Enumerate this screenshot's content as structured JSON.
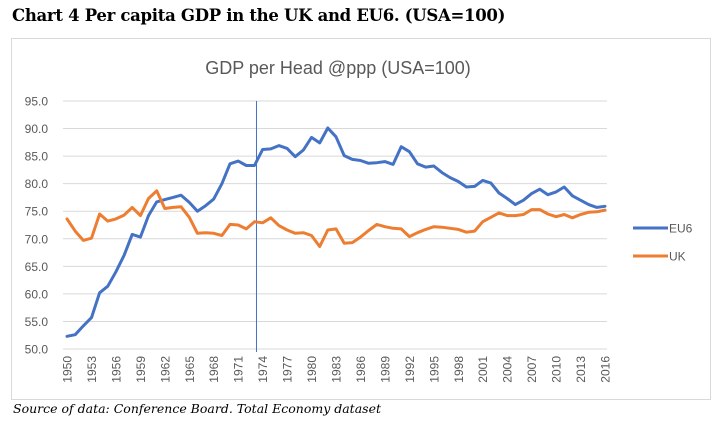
{
  "heading": "Chart 4 Per capita GDP in the UK and EU6. (USA=100)",
  "source": "Source of data: Conference Board. Total Economy dataset",
  "chart_data": {
    "type": "line",
    "title": "GDP per Head @ppp (USA=100)",
    "xlabel": "",
    "ylabel": "",
    "ylim": [
      50,
      95
    ],
    "y_ticks": [
      "50.0",
      "55.0",
      "60.0",
      "65.0",
      "70.0",
      "75.0",
      "80.0",
      "85.0",
      "90.0",
      "95.0"
    ],
    "y_tick_values": [
      50,
      55,
      60,
      65,
      70,
      75,
      80,
      85,
      90,
      95
    ],
    "x_tick_labels": [
      "1950",
      "1953",
      "1956",
      "1959",
      "1962",
      "1965",
      "1968",
      "1971",
      "1974",
      "1977",
      "1980",
      "1983",
      "1986",
      "1989",
      "1992",
      "1995",
      "1998",
      "2001",
      "2004",
      "2007",
      "2010",
      "2013",
      "2016"
    ],
    "grid": true,
    "legend_position": "right",
    "vertical_marker_year": 1973,
    "x": [
      1950,
      1951,
      1952,
      1953,
      1954,
      1955,
      1956,
      1957,
      1958,
      1959,
      1960,
      1961,
      1962,
      1963,
      1964,
      1965,
      1966,
      1967,
      1968,
      1969,
      1970,
      1971,
      1972,
      1973,
      1974,
      1975,
      1976,
      1977,
      1978,
      1979,
      1980,
      1981,
      1982,
      1983,
      1984,
      1985,
      1986,
      1987,
      1988,
      1989,
      1990,
      1991,
      1992,
      1993,
      1994,
      1995,
      1996,
      1997,
      1998,
      1999,
      2000,
      2001,
      2002,
      2003,
      2004,
      2005,
      2006,
      2007,
      2008,
      2009,
      2010,
      2011,
      2012,
      2013,
      2014,
      2015,
      2016
    ],
    "series": [
      {
        "name": "EU6",
        "color": "#4472c4",
        "values": [
          52.3,
          52.6,
          54.2,
          55.7,
          60.2,
          61.4,
          64.0,
          67.0,
          70.8,
          70.3,
          74.2,
          76.7,
          77.1,
          77.5,
          77.9,
          76.6,
          75.0,
          76.0,
          77.2,
          80.0,
          83.6,
          84.1,
          83.3,
          83.3,
          86.2,
          86.3,
          86.9,
          86.4,
          84.9,
          86.1,
          88.4,
          87.4,
          90.1,
          88.5,
          85.1,
          84.4,
          84.2,
          83.7,
          83.8,
          84.0,
          83.5,
          86.7,
          85.8,
          83.6,
          83.0,
          83.2,
          82.0,
          81.1,
          80.4,
          79.4,
          79.5,
          80.6,
          80.1,
          78.3,
          77.3,
          76.2,
          77.0,
          78.2,
          79.0,
          78.0,
          78.5,
          79.4,
          77.8,
          77.0,
          76.2,
          75.7,
          75.9
        ]
      },
      {
        "name": "UK",
        "color": "#ed7d31",
        "values": [
          73.6,
          71.4,
          69.7,
          70.1,
          74.5,
          73.2,
          73.6,
          74.3,
          75.7,
          74.2,
          77.3,
          78.7,
          75.5,
          75.7,
          75.8,
          73.9,
          71.0,
          71.1,
          71.0,
          70.6,
          72.6,
          72.5,
          71.8,
          73.1,
          72.9,
          73.8,
          72.4,
          71.6,
          71.0,
          71.1,
          70.6,
          68.6,
          71.6,
          71.8,
          69.2,
          69.3,
          70.3,
          71.5,
          72.6,
          72.2,
          71.9,
          71.8,
          70.4,
          71.1,
          71.7,
          72.2,
          72.1,
          71.9,
          71.7,
          71.2,
          71.4,
          73.1,
          73.9,
          74.7,
          74.2,
          74.2,
          74.4,
          75.3,
          75.3,
          74.5,
          74.0,
          74.4,
          73.8,
          74.4,
          74.8,
          74.9,
          75.2
        ]
      }
    ]
  }
}
